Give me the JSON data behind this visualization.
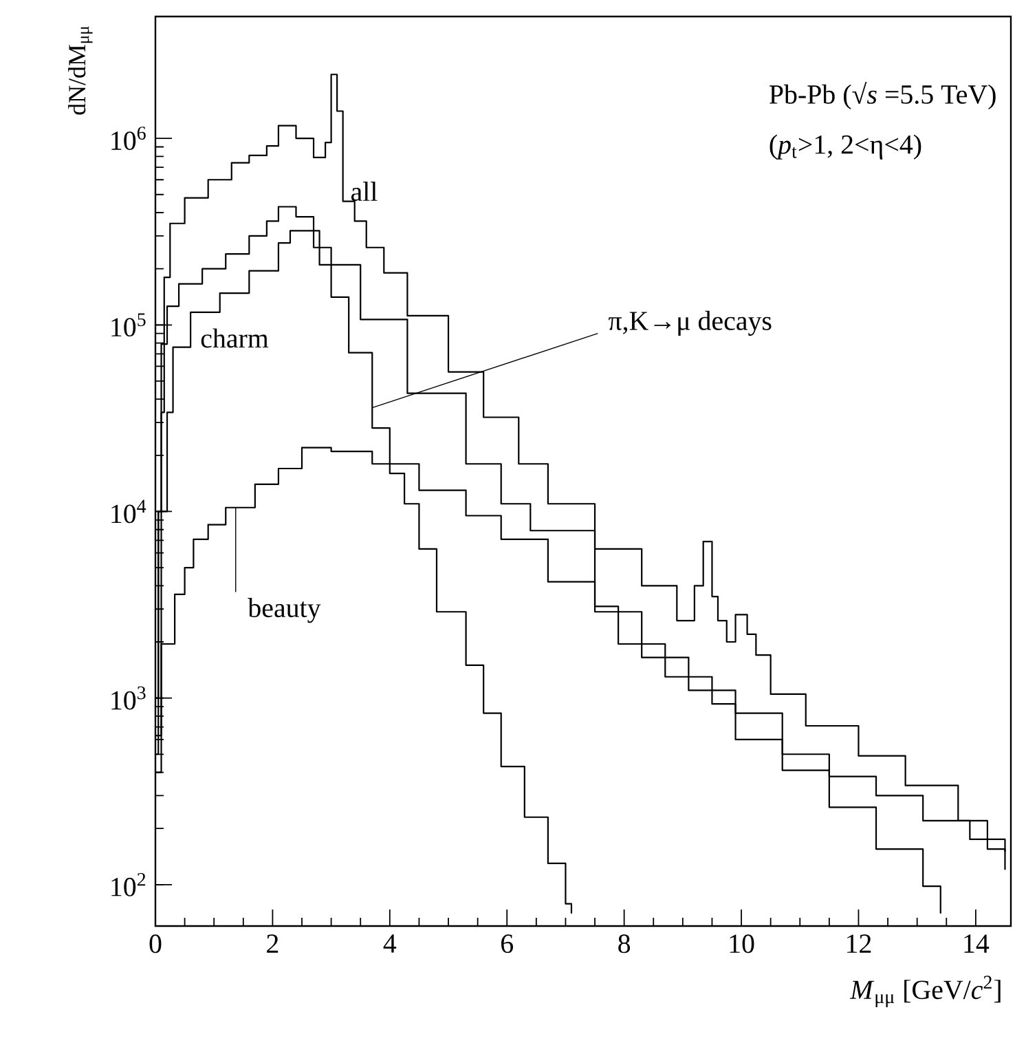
{
  "chart_data": {
    "type": "step",
    "xlabel": "*M*$_{μμ}$ [GeV/*c*$^{2}$]",
    "ylabel": "dN/dM$_{μμ}$",
    "annotations": [
      "Pb-Pb (√*s* =5.5 TeV)",
      "(*p*$_{t}$>1, 2<η<4)"
    ],
    "log": "y",
    "xlim": [
      0,
      14.6
    ],
    "xticks": [
      0,
      2,
      4,
      6,
      8,
      10,
      12,
      14
    ],
    "ylim": [
      60,
      4500000
    ],
    "yticks": [
      {
        "value": 100,
        "label": "10$^{2}$"
      },
      {
        "value": 1000,
        "label": "10$^{3}$"
      },
      {
        "value": 10000,
        "label": "10$^{4}$"
      },
      {
        "value": 100000,
        "label": "10$^{5}$"
      },
      {
        "value": 1000000,
        "label": "10$^{6}$"
      }
    ],
    "series": [
      {
        "name": "all",
        "color": "#000000",
        "x": [
          0,
          0.05,
          0.1,
          0.15,
          0.25,
          0.5,
          0.9,
          1.3,
          1.6,
          1.9,
          2.1,
          2.4,
          2.7,
          2.9,
          3.0,
          3.1,
          3.2,
          3.4,
          3.6,
          3.9,
          4.3,
          5.0,
          5.6,
          6.2,
          6.7,
          7.5,
          8.3,
          8.9,
          9.2,
          9.35,
          9.5,
          9.6,
          9.75,
          9.9,
          10.1,
          10.25,
          10.5,
          11.1,
          12.0,
          12.8,
          13.7,
          14.2,
          14.5
        ],
        "values": [
          500,
          10000,
          34000,
          180000,
          350000,
          480000,
          600000,
          740000,
          810000,
          910000,
          1170000,
          1000000,
          790000,
          950000,
          2200000,
          1400000,
          460000,
          360000,
          260000,
          190000,
          112000,
          56000,
          32000,
          18000,
          11000,
          6300,
          4000,
          2600,
          4000,
          6900,
          3500,
          2600,
          2000,
          2800,
          2200,
          1700,
          1050,
          710,
          490,
          340,
          220,
          155,
          150
        ]
      },
      {
        "name": "π,K→μ decays",
        "color": "#000000",
        "x": [
          0,
          0.05,
          0.1,
          0.2,
          0.4,
          0.8,
          1.2,
          1.6,
          1.9,
          2.1,
          2.4,
          2.7,
          3.0,
          3.3,
          3.7,
          4.0,
          4.25,
          4.5,
          4.8,
          5.3,
          5.6,
          5.9,
          6.3,
          6.7,
          7.0,
          7.1
        ],
        "values": [
          1000,
          10000,
          79000,
          126000,
          166000,
          200000,
          240000,
          300000,
          360000,
          430000,
          380000,
          260000,
          141000,
          71000,
          28000,
          16000,
          11000,
          6300,
          2900,
          1500,
          830,
          430,
          230,
          130,
          79,
          70
        ]
      },
      {
        "name": "charm",
        "color": "#000000",
        "x": [
          0,
          0.1,
          0.2,
          0.3,
          0.6,
          1.1,
          1.6,
          2.1,
          2.3,
          2.8,
          3.5,
          4.3,
          5.3,
          5.9,
          6.4,
          7.5,
          7.9,
          8.7,
          9.5,
          9.9,
          10.7,
          11.5,
          12.3,
          13.1,
          13.4
        ],
        "values": [
          630,
          10000,
          34000,
          76000,
          117000,
          148000,
          195000,
          275000,
          320000,
          210000,
          107000,
          43000,
          18000,
          11000,
          7900,
          3100,
          1950,
          1300,
          930,
          600,
          410,
          260,
          155,
          98,
          70
        ]
      },
      {
        "name": "beauty",
        "color": "#000000",
        "x": [
          0,
          0.1,
          0.33,
          0.5,
          0.65,
          0.9,
          1.2,
          1.7,
          2.1,
          2.5,
          3.0,
          3.7,
          4.5,
          5.3,
          5.9,
          6.7,
          7.5,
          8.3,
          9.1,
          9.9,
          10.7,
          11.5,
          12.3,
          13.1,
          13.9,
          14.5
        ],
        "values": [
          400,
          1950,
          3600,
          5000,
          7100,
          8500,
          10500,
          14000,
          17000,
          22000,
          21000,
          18000,
          13000,
          9500,
          7100,
          4200,
          2900,
          1650,
          1100,
          830,
          500,
          380,
          300,
          220,
          175,
          120
        ]
      }
    ]
  }
}
